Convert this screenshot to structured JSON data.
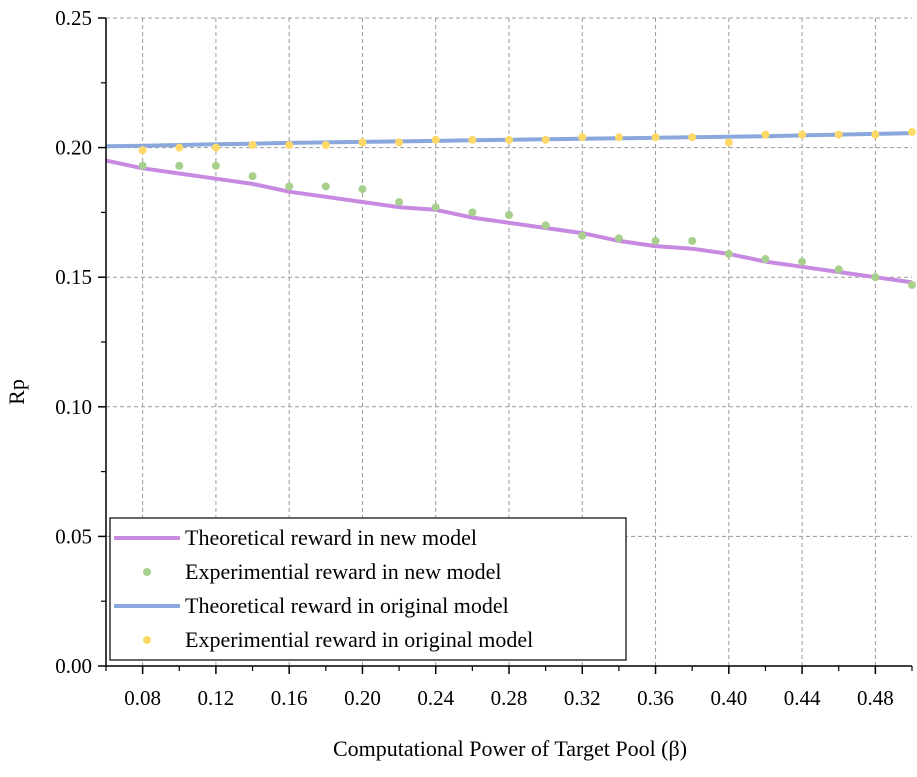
{
  "chart_data": {
    "type": "line",
    "title": "",
    "xlabel": "Computational Power of Target Pool (β)",
    "ylabel": "Rp",
    "xlim": [
      0.06,
      0.5
    ],
    "ylim": [
      0,
      0.25
    ],
    "x_ticks": [
      0.08,
      0.12,
      0.16,
      0.2,
      0.24,
      0.28,
      0.32,
      0.36,
      0.4,
      0.44,
      0.48
    ],
    "x_tick_labels": [
      "0.08",
      "0.12",
      "0.16",
      "0.20",
      "0.24",
      "0.28",
      "0.32",
      "0.36",
      "0.40",
      "0.44",
      "0.48"
    ],
    "y_ticks": [
      0,
      0.05,
      0.1,
      0.15,
      0.2,
      0.25
    ],
    "y_tick_labels": [
      "0.00",
      "0.05",
      "0.10",
      "0.15",
      "0.20",
      "0.25"
    ],
    "grid": true,
    "legend_position": "bottom-left",
    "series": [
      {
        "name": "Theoretical reward in new model",
        "kind": "line",
        "color": "#c88ae0",
        "x": [
          0.06,
          0.08,
          0.1,
          0.12,
          0.14,
          0.16,
          0.18,
          0.2,
          0.22,
          0.24,
          0.26,
          0.28,
          0.3,
          0.32,
          0.34,
          0.36,
          0.38,
          0.4,
          0.42,
          0.44,
          0.46,
          0.48,
          0.5
        ],
        "y": [
          0.195,
          0.192,
          0.19,
          0.188,
          0.186,
          0.183,
          0.181,
          0.179,
          0.177,
          0.176,
          0.173,
          0.171,
          0.169,
          0.167,
          0.164,
          0.162,
          0.161,
          0.159,
          0.156,
          0.154,
          0.152,
          0.15,
          0.148
        ]
      },
      {
        "name": "Experimential reward in new model",
        "kind": "scatter",
        "color": "#a8d08d",
        "x": [
          0.08,
          0.1,
          0.12,
          0.14,
          0.16,
          0.18,
          0.2,
          0.22,
          0.24,
          0.26,
          0.28,
          0.3,
          0.32,
          0.34,
          0.36,
          0.38,
          0.4,
          0.42,
          0.44,
          0.46,
          0.48,
          0.5
        ],
        "y": [
          0.193,
          0.193,
          0.193,
          0.189,
          0.185,
          0.185,
          0.184,
          0.179,
          0.177,
          0.175,
          0.174,
          0.17,
          0.166,
          0.165,
          0.164,
          0.164,
          0.159,
          0.157,
          0.156,
          0.153,
          0.15,
          0.147
        ]
      },
      {
        "name": "Theoretical reward in original model",
        "kind": "line",
        "color": "#8aa8dc",
        "x": [
          0.06,
          0.08,
          0.1,
          0.12,
          0.14,
          0.16,
          0.18,
          0.2,
          0.22,
          0.24,
          0.26,
          0.28,
          0.3,
          0.32,
          0.34,
          0.36,
          0.38,
          0.4,
          0.42,
          0.44,
          0.46,
          0.48,
          0.5
        ],
        "y": [
          0.2005,
          0.2007,
          0.201,
          0.2013,
          0.2015,
          0.2018,
          0.202,
          0.2022,
          0.2024,
          0.2026,
          0.2028,
          0.203,
          0.2032,
          0.2034,
          0.2036,
          0.2038,
          0.204,
          0.2042,
          0.2044,
          0.2047,
          0.205,
          0.2053,
          0.2056
        ]
      },
      {
        "name": "Experimential reward in original model",
        "kind": "scatter",
        "color": "#ffd966",
        "x": [
          0.08,
          0.1,
          0.12,
          0.14,
          0.16,
          0.18,
          0.2,
          0.22,
          0.24,
          0.26,
          0.28,
          0.3,
          0.32,
          0.34,
          0.36,
          0.38,
          0.4,
          0.42,
          0.44,
          0.46,
          0.48,
          0.5
        ],
        "y": [
          0.199,
          0.2,
          0.2,
          0.201,
          0.201,
          0.201,
          0.202,
          0.202,
          0.203,
          0.203,
          0.203,
          0.203,
          0.204,
          0.204,
          0.204,
          0.204,
          0.202,
          0.205,
          0.205,
          0.205,
          0.205,
          0.206
        ]
      }
    ]
  }
}
